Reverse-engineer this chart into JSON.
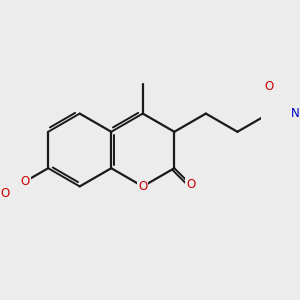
{
  "background_color": "#ececec",
  "bond_color": "#1a1a1a",
  "red": "#cc0000",
  "blue": "#0000bb",
  "lw": 1.6,
  "lw_inner": 1.4,
  "fs": 8.5,
  "figsize": [
    3.0,
    3.0
  ],
  "dpi": 100,
  "xlim": [
    -2.8,
    3.5
  ],
  "ylim": [
    -2.2,
    2.5
  ]
}
